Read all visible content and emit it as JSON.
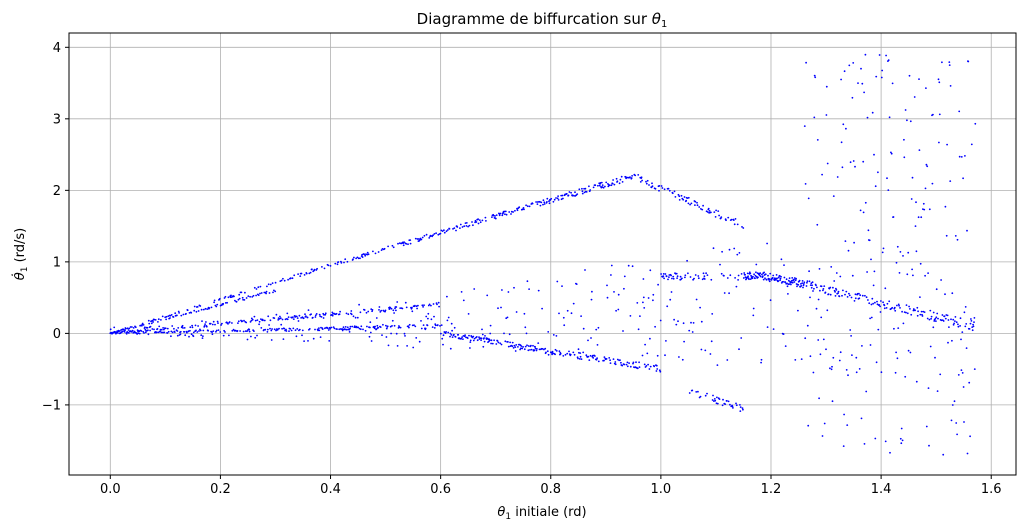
{
  "chart_data": {
    "type": "scatter",
    "title": "Diagramme de biffurcation sur θ₁",
    "title_parts": {
      "main": "Diagramme de biffurcation sur ",
      "theta": "θ",
      "sub": "1"
    },
    "xlabel": "θ₁ initiale (rd)",
    "xlabel_parts": {
      "theta": "θ",
      "sub": "1",
      "rest": " initiale (rd)"
    },
    "ylabel": "θ̇₁ (rd/s)",
    "ylabel_parts": {
      "theta": "θ̇",
      "sub": "1",
      "rest": " (rd/s)"
    },
    "xlim": [
      -0.075,
      1.645
    ],
    "ylim": [
      -1.98,
      4.2
    ],
    "x_ticks": [
      0.0,
      0.2,
      0.4,
      0.6,
      0.8,
      1.0,
      1.2,
      1.4,
      1.6
    ],
    "x_tick_labels": [
      "0.0",
      "0.2",
      "0.4",
      "0.6",
      "0.8",
      "1.0",
      "1.2",
      "1.4",
      "1.6"
    ],
    "y_ticks": [
      -1,
      0,
      1,
      2,
      3,
      4
    ],
    "y_tick_labels": [
      "−1",
      "0",
      "1",
      "2",
      "3",
      "4"
    ],
    "grid": true,
    "marker_color": "#0000ff",
    "x_range": [
      0.0,
      1.571
    ],
    "point_count": 2000,
    "branches": [
      {
        "x_start": 0.0,
        "x_end": 0.42,
        "y_start": 0.0,
        "y_end": 1.0
      },
      {
        "x_start": 0.42,
        "x_end": 0.95,
        "y_start": 1.0,
        "y_end": 2.2
      },
      {
        "x_start": 0.95,
        "x_end": 1.15,
        "y_start": 2.2,
        "y_end": 1.5
      },
      {
        "x_start": 0.0,
        "x_end": 0.3,
        "y_start": 0.0,
        "y_end": 0.6
      },
      {
        "x_start": 0.0,
        "x_end": 0.6,
        "y_start": 0.0,
        "y_end": 0.4
      },
      {
        "x_start": 0.0,
        "x_end": 0.6,
        "y_start": 0.0,
        "y_end": 0.1
      },
      {
        "x_start": 1.0,
        "x_end": 1.2,
        "y_start": 0.8,
        "y_end": 0.8
      },
      {
        "x_start": 1.2,
        "x_end": 1.57,
        "y_start": 0.8,
        "y_end": 0.1
      },
      {
        "x_start": 0.6,
        "x_end": 1.0,
        "y_start": 0.0,
        "y_end": -0.5
      },
      {
        "x_start": 1.05,
        "x_end": 1.15,
        "y_start": -0.8,
        "y_end": -1.05
      }
    ],
    "chaotic_region": {
      "x_start": 1.26,
      "x_end": 1.571,
      "y_min": -1.7,
      "y_max": 3.9
    }
  }
}
